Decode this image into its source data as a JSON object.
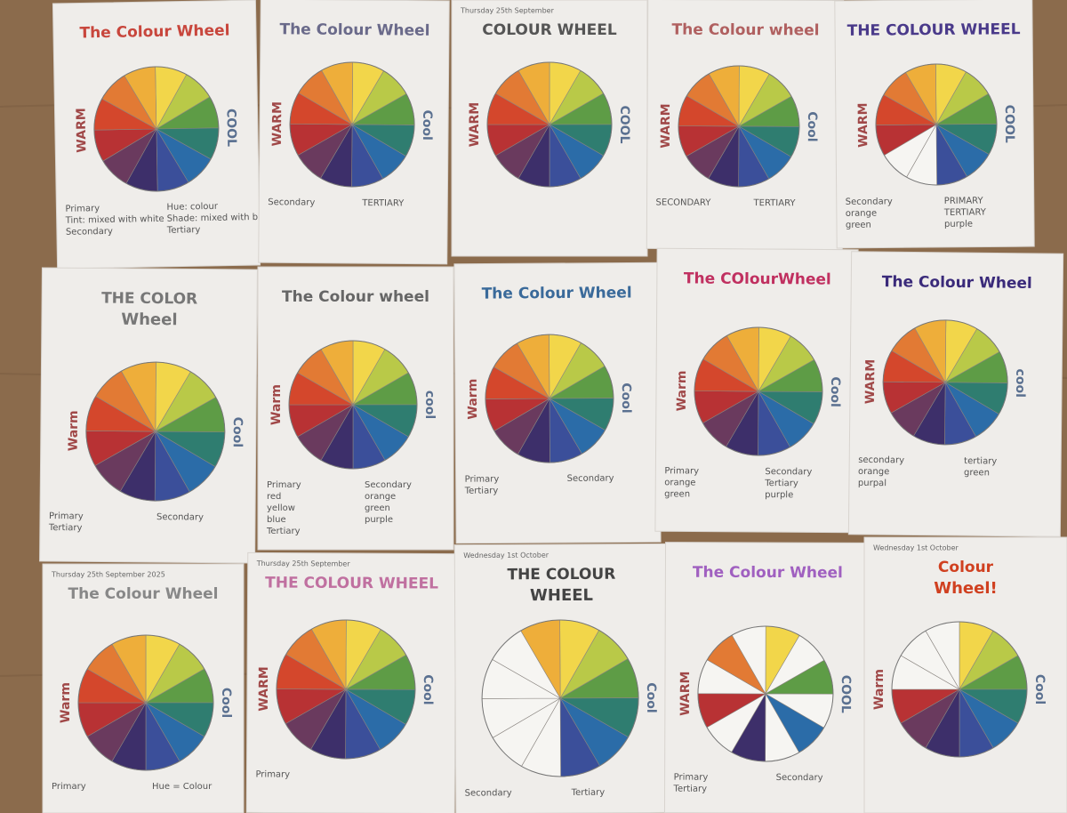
{
  "sheets": [
    {
      "title": "The Colour Wheel",
      "warm": "WARM",
      "cool": "COOL",
      "notes": [
        "Primary",
        "Hue: colour",
        "Tint: mixed with white",
        "Shade: mixed with black",
        "Secondary",
        "Tertiary"
      ]
    },
    {
      "title": "The Colour Wheel",
      "warm": "WARM",
      "cool": "Cool",
      "notes": [
        "Secondary",
        "TERTIARY"
      ]
    },
    {
      "date": "Thursday 25th September",
      "title": "COLOUR WHEEL",
      "warm": "WARM",
      "cool": "COOL",
      "notes": []
    },
    {
      "title": "The Colour wheel",
      "warm": "WARM",
      "cool": "Cool",
      "notes": [
        "SECONDARY",
        "TERTIARY"
      ]
    },
    {
      "title": "THE COLOUR WHEEL",
      "warm": "WARM",
      "cool": "COOL",
      "notes": [
        "Secondary",
        "PRIMARY",
        "orange",
        "TERTIARY",
        "green",
        "purple"
      ]
    },
    {
      "title": "THE COLOR",
      "subtitle": "Wheel",
      "warm": "Warm",
      "cool": "Cool",
      "notes": [
        "Primary",
        "Secondary",
        "Tertiary"
      ]
    },
    {
      "title": "The Colour wheel",
      "warm": "Warm",
      "cool": "cool",
      "notes": [
        "Primary",
        "Secondary",
        "red",
        "orange",
        "yellow",
        "green",
        "blue",
        "purple",
        "Tertiary"
      ]
    },
    {
      "title": "The Colour Wheel",
      "warm": "Warm",
      "cool": "Cool",
      "notes": [
        "Primary",
        "Secondary",
        "Tertiary"
      ]
    },
    {
      "title": "The COlourWheel",
      "warm": "Warm",
      "cool": "Cool",
      "notes": [
        "Primary",
        "Secondary",
        "orange",
        "Tertiary",
        "green",
        "purple"
      ]
    },
    {
      "title": "The Colour Wheel",
      "warm": "WARM",
      "cool": "cool",
      "notes": [
        "secondary",
        "tertiary",
        "orange",
        "green",
        "purpal"
      ]
    },
    {
      "date": "Thursday 25th September 2025",
      "title": "The Colour Wheel",
      "warm": "Warm",
      "cool": "Cool",
      "notes": [
        "Primary",
        "Hue = Colour"
      ]
    },
    {
      "date": "Thursday 25th September",
      "title": "THE COLOUR WHEEL",
      "warm": "WARM",
      "cool": "Cool",
      "notes": [
        "Primary"
      ]
    },
    {
      "date": "Wednesday 1st October",
      "title": "THE COLOUR",
      "subtitle": "WHEEL",
      "warm": "",
      "cool": "Cool",
      "notes": [
        "Secondary",
        "Tertiary"
      ]
    },
    {
      "title": "The Colour Wheel",
      "warm": "WARM",
      "cool": "COOL",
      "notes": [
        "Primary",
        "Secondary",
        "Tertiary"
      ]
    },
    {
      "date": "Wednesday 1st October",
      "title": "Colour",
      "subtitle": "Wheel!",
      "warm": "Warm",
      "cool": "Cool",
      "notes": []
    }
  ]
}
